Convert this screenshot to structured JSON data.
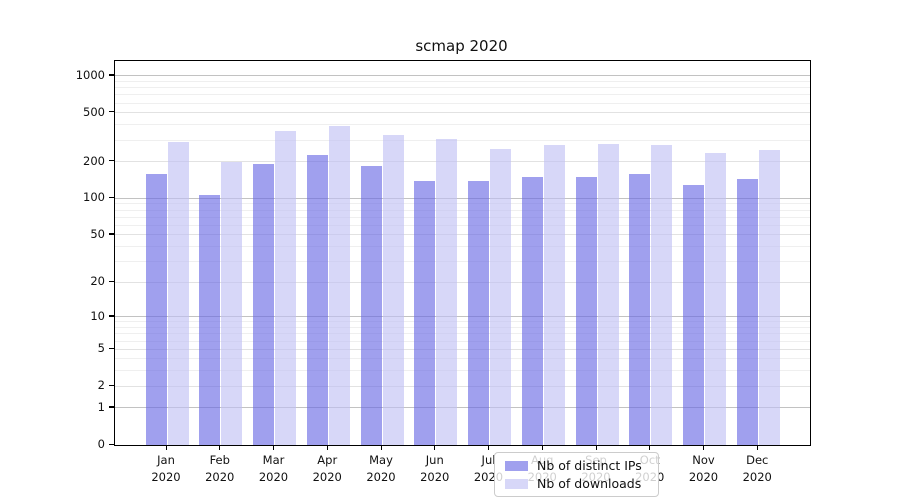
{
  "chart_data": {
    "type": "bar",
    "title": "scmap 2020",
    "categories": [
      "Jan",
      "Feb",
      "Mar",
      "Apr",
      "May",
      "Jun",
      "Jul",
      "Aug",
      "Sep",
      "Oct",
      "Nov",
      "Dec"
    ],
    "category_year": "2020",
    "series": [
      {
        "name": "Nb of distinct IPs",
        "color": "rgba(102,102,228,0.62)",
        "values": [
          158,
          106,
          190,
          227,
          185,
          138,
          140,
          151,
          151,
          158,
          128,
          145
        ]
      },
      {
        "name": "Nb of downloads",
        "color": "rgba(190,190,243,0.62)",
        "values": [
          291,
          199,
          358,
          393,
          332,
          308,
          254,
          274,
          280,
          272,
          235,
          251
        ]
      }
    ],
    "xlabel": "",
    "ylabel": "",
    "yscale": "log1p",
    "ylim": [
      0,
      1320
    ],
    "yticks": [
      0,
      1,
      2,
      5,
      10,
      20,
      50,
      100,
      200,
      500,
      1000
    ],
    "ytick_mid": [
      2,
      5,
      20,
      50,
      200,
      500
    ],
    "ytick_decades": [
      1,
      10,
      100,
      1000
    ],
    "yticks_minor": [
      3,
      4,
      6,
      7,
      8,
      9,
      30,
      40,
      60,
      70,
      80,
      90,
      300,
      400,
      600,
      700,
      800,
      900
    ],
    "grid": true,
    "legend_position": "lower center",
    "colors": {
      "spine": "#000000",
      "grid_major": "#c2c2c2",
      "grid_minor": "#efefef",
      "background": "#ffffff"
    }
  }
}
